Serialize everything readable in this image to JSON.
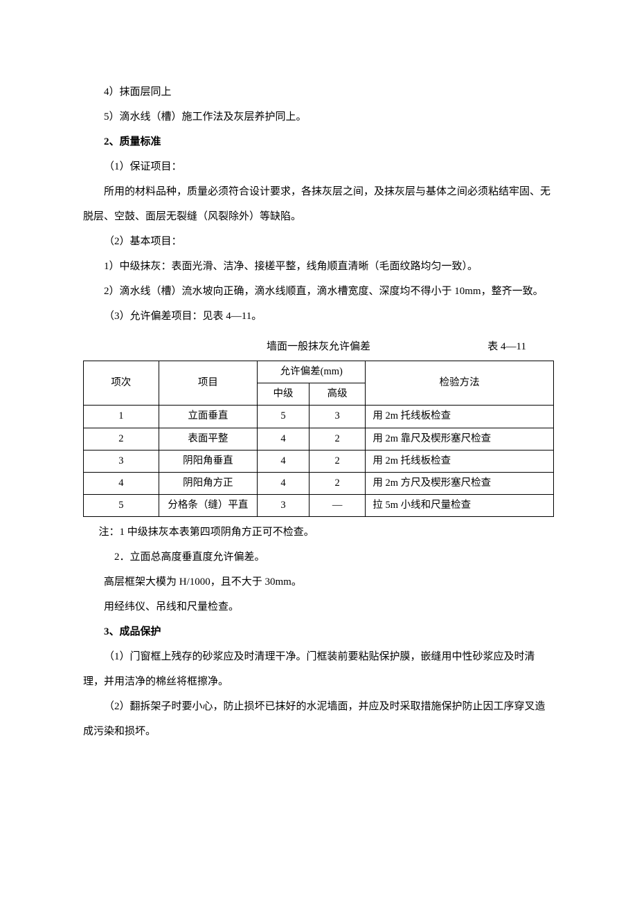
{
  "paragraphs": {
    "p1": "4）抹面层同上",
    "p2": "5）滴水线（槽）施工作法及灰层养护同上。",
    "h2": "2、质量标准",
    "p3": "（1）保证项目：",
    "p4": "所用的材料品种，质量必须符合设计要求，各抹灰层之间，及抹灰层与基体之间必须粘结牢固、无脱层、空鼓、面层无裂缝（风裂除外）等缺陷。",
    "p5": "（2）基本项目：",
    "p6": "1）中级抹灰：表面光滑、洁净、接槎平整，线角顺直清晰（毛面纹路均匀一致）。",
    "p7": "2）滴水线（槽）流水坡向正确，滴水线顺直，滴水槽宽度、深度均不得小于 10mm，整齐一致。",
    "p8": "（3）允许偏差项目：见表 4—11。"
  },
  "table": {
    "title": "墙面一般抹灰允许偏差",
    "label": "表 4—11",
    "header": {
      "seq": "项次",
      "item": "项目",
      "dev": "允许偏差(mm)",
      "mid": "中级",
      "high": "高级",
      "method": "检验方法"
    },
    "rows": [
      {
        "seq": "1",
        "item": "立面垂直",
        "mid": "5",
        "high": "3",
        "method": "用 2m 托线板检查"
      },
      {
        "seq": "2",
        "item": "表面平整",
        "mid": "4",
        "high": "2",
        "method": "用 2m 靠尺及楔形塞尺检查"
      },
      {
        "seq": "3",
        "item": "阴阳角垂直",
        "mid": "4",
        "high": "2",
        "method": "用 2m 托线板检查"
      },
      {
        "seq": "4",
        "item": "阴阳角方正",
        "mid": "4",
        "high": "2",
        "method": "用 2m 方尺及楔形塞尺检查"
      },
      {
        "seq": "5",
        "item": "分格条（缝）平直",
        "mid": "3",
        "high": "—",
        "method": "拉 5m 小线和尺量检查"
      }
    ]
  },
  "notes": {
    "n1": "注：1 中级抹灰本表第四项阴角方正可不检查。",
    "n2": "2．立面总高度垂直度允许偏差。",
    "n3": "高层框架大模为 H/1000，且不大于 30mm。",
    "n4": "用经纬仪、吊线和尺量检查。"
  },
  "section3": {
    "h3": "3、成品保护",
    "p1": "（1）门窗框上残存的砂浆应及时清理干净。门框装前要粘贴保护膜，嵌缝用中性砂浆应及时清理，并用洁净的棉丝将框擦净。",
    "p2": "（2）翻拆架子时要小心，防止损坏已抹好的水泥墙面，并应及时采取措施保护防止因工序穿叉造成污染和损坏。"
  }
}
